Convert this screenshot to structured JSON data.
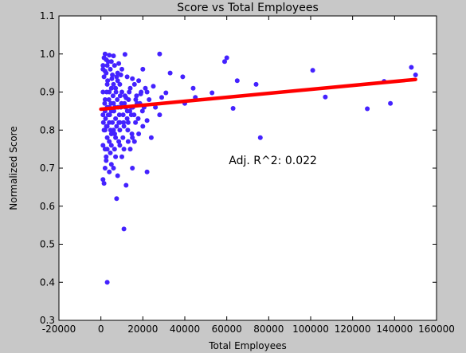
{
  "chart_data": {
    "type": "scatter",
    "title": "Score vs Total Employees",
    "xlabel": "Total Employees",
    "ylabel": "Normalized Score",
    "xlim": [
      -20000,
      160000
    ],
    "ylim": [
      0.3,
      1.1
    ],
    "x_ticks": [
      -20000,
      0,
      20000,
      40000,
      60000,
      80000,
      100000,
      120000,
      140000,
      160000
    ],
    "y_ticks": [
      0.3,
      0.4,
      0.5,
      0.6,
      0.7,
      0.8,
      0.9,
      1.0,
      1.1
    ],
    "grid": false,
    "annotation": {
      "text": "Adj. R^2: 0.022",
      "x": 61000,
      "y": 0.71
    },
    "colors": {
      "points": "#4422ff",
      "fit_line": "#ff0000",
      "figure_bg": "#c8c8c8",
      "plot_bg": "#ffffff"
    },
    "fit_line": {
      "x": [
        0,
        150000
      ],
      "y": [
        0.855,
        0.933
      ]
    },
    "points": [
      [
        2000,
        1.0
      ],
      [
        4000,
        0.997
      ],
      [
        6000,
        0.995
      ],
      [
        11500,
        0.999
      ],
      [
        28000,
        1.0
      ],
      [
        20000,
        0.96
      ],
      [
        33000,
        0.95
      ],
      [
        39000,
        0.94
      ],
      [
        59000,
        0.98
      ],
      [
        60000,
        0.99
      ],
      [
        101000,
        0.957
      ],
      [
        148000,
        0.965
      ],
      [
        150000,
        0.945
      ],
      [
        135000,
        0.928
      ],
      [
        65000,
        0.93
      ],
      [
        74000,
        0.92
      ],
      [
        107000,
        0.887
      ],
      [
        127000,
        0.856
      ],
      [
        138000,
        0.87
      ],
      [
        63000,
        0.857
      ],
      [
        76000,
        0.78
      ],
      [
        53000,
        0.898
      ],
      [
        44000,
        0.91
      ],
      [
        40000,
        0.87
      ],
      [
        45000,
        0.886
      ],
      [
        31000,
        0.898
      ],
      [
        29000,
        0.886
      ],
      [
        22000,
        0.9
      ],
      [
        25000,
        0.915
      ],
      [
        19000,
        0.895
      ],
      [
        17000,
        0.89
      ],
      [
        14000,
        0.91
      ],
      [
        16000,
        0.92
      ],
      [
        12000,
        0.885
      ],
      [
        10000,
        0.9
      ],
      [
        9000,
        0.92
      ],
      [
        8000,
        0.93
      ],
      [
        7000,
        0.91
      ],
      [
        5000,
        0.91
      ],
      [
        3000,
        0.92
      ],
      [
        1500,
        0.94
      ],
      [
        2500,
        0.95
      ],
      [
        4500,
        0.96
      ],
      [
        6500,
        0.97
      ],
      [
        8500,
        0.975
      ],
      [
        3500,
        0.98
      ],
      [
        1000,
        0.97
      ],
      [
        2000,
        0.955
      ],
      [
        5500,
        0.945
      ],
      [
        7500,
        0.94
      ],
      [
        9500,
        0.945
      ],
      [
        12500,
        0.94
      ],
      [
        15000,
        0.935
      ],
      [
        18000,
        0.93
      ],
      [
        23000,
        0.88
      ],
      [
        26000,
        0.86
      ],
      [
        28000,
        0.84
      ],
      [
        22000,
        0.825
      ],
      [
        20000,
        0.81
      ],
      [
        18000,
        0.79
      ],
      [
        16000,
        0.77
      ],
      [
        14000,
        0.75
      ],
      [
        24000,
        0.78
      ],
      [
        22000,
        0.69
      ],
      [
        15000,
        0.7
      ],
      [
        12000,
        0.655
      ],
      [
        10000,
        0.73
      ],
      [
        8000,
        0.68
      ],
      [
        7500,
        0.62
      ],
      [
        11000,
        0.54
      ],
      [
        3000,
        0.4
      ],
      [
        1000,
        0.67
      ],
      [
        1500,
        0.66
      ],
      [
        2500,
        0.73
      ],
      [
        2000,
        0.75
      ],
      [
        4000,
        0.77
      ],
      [
        5000,
        0.79
      ],
      [
        6000,
        0.8
      ],
      [
        3000,
        0.81
      ],
      [
        1200,
        0.82
      ],
      [
        2200,
        0.83
      ],
      [
        4200,
        0.84
      ],
      [
        6200,
        0.85
      ],
      [
        8200,
        0.86
      ],
      [
        1800,
        0.87
      ],
      [
        3800,
        0.88
      ],
      [
        5800,
        0.89
      ],
      [
        7800,
        0.88
      ],
      [
        9800,
        0.87
      ],
      [
        11800,
        0.86
      ],
      [
        13800,
        0.85
      ],
      [
        15800,
        0.84
      ],
      [
        17800,
        0.83
      ],
      [
        19800,
        0.85
      ],
      [
        1000,
        0.9
      ],
      [
        2800,
        0.9
      ],
      [
        4800,
        0.87
      ],
      [
        6800,
        0.86
      ],
      [
        8800,
        0.84
      ],
      [
        10800,
        0.82
      ],
      [
        12800,
        0.8
      ],
      [
        14800,
        0.79
      ],
      [
        1000,
        0.76
      ],
      [
        3000,
        0.86
      ],
      [
        5000,
        0.85
      ],
      [
        7000,
        0.83
      ],
      [
        9000,
        0.82
      ],
      [
        11000,
        0.81
      ],
      [
        13000,
        0.82
      ],
      [
        4000,
        0.82
      ],
      [
        2000,
        0.8
      ],
      [
        3000,
        0.78
      ],
      [
        5000,
        0.76
      ],
      [
        7000,
        0.78
      ],
      [
        9000,
        0.8
      ],
      [
        2000,
        0.88
      ],
      [
        4000,
        0.9
      ],
      [
        6000,
        0.92
      ],
      [
        8000,
        0.95
      ],
      [
        10000,
        0.96
      ],
      [
        3000,
        0.97
      ],
      [
        5000,
        0.98
      ],
      [
        1500,
        0.99
      ],
      [
        2500,
        0.985
      ],
      [
        1000,
        0.96
      ],
      [
        3200,
        0.93
      ],
      [
        5200,
        0.935
      ],
      [
        7200,
        0.9
      ],
      [
        9200,
        0.89
      ],
      [
        11200,
        0.87
      ],
      [
        13200,
        0.88
      ],
      [
        15200,
        0.86
      ],
      [
        17200,
        0.87
      ],
      [
        19200,
        0.9
      ],
      [
        21200,
        0.91
      ],
      [
        16500,
        0.82
      ],
      [
        14500,
        0.84
      ],
      [
        12500,
        0.83
      ],
      [
        10500,
        0.78
      ],
      [
        8500,
        0.77
      ],
      [
        6500,
        0.75
      ],
      [
        4500,
        0.74
      ],
      [
        2500,
        0.72
      ],
      [
        1500,
        0.8
      ],
      [
        3500,
        0.84
      ],
      [
        5500,
        0.82
      ],
      [
        7500,
        0.81
      ],
      [
        9500,
        0.86
      ],
      [
        11500,
        0.89
      ],
      [
        13500,
        0.9
      ],
      [
        6000,
        0.87
      ],
      [
        4000,
        0.86
      ],
      [
        2000,
        0.85
      ],
      [
        1000,
        0.84
      ],
      [
        2600,
        0.81
      ],
      [
        4600,
        0.8
      ],
      [
        6600,
        0.79
      ],
      [
        8600,
        0.82
      ],
      [
        10600,
        0.84
      ],
      [
        12600,
        0.85
      ],
      [
        14600,
        0.86
      ],
      [
        16600,
        0.88
      ],
      [
        18600,
        0.87
      ],
      [
        20600,
        0.86
      ],
      [
        3000,
        0.75
      ],
      [
        5000,
        0.71
      ],
      [
        7000,
        0.73
      ],
      [
        9000,
        0.76
      ],
      [
        11000,
        0.75
      ],
      [
        13000,
        0.77
      ],
      [
        15000,
        0.78
      ],
      [
        2000,
        0.7
      ],
      [
        4000,
        0.69
      ],
      [
        6000,
        0.7
      ]
    ]
  }
}
